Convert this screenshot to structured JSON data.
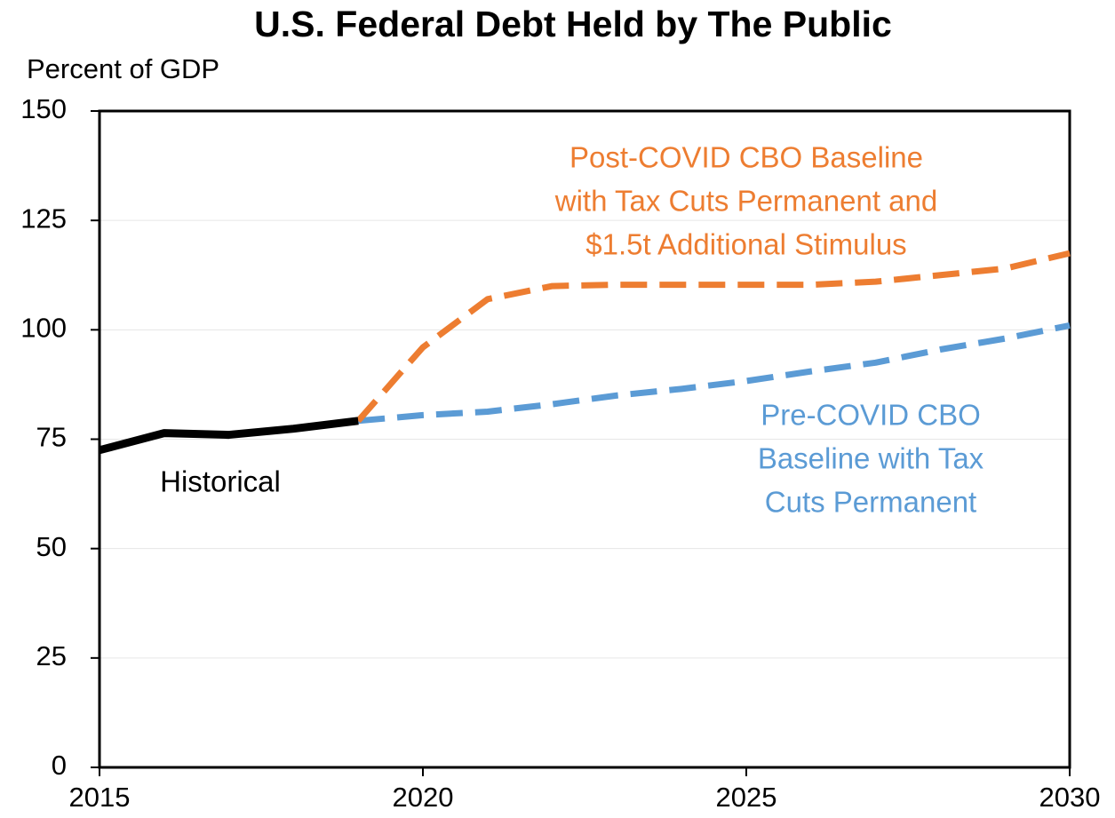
{
  "chart_data": {
    "type": "line",
    "title": "U.S. Federal Debt Held by The Public",
    "y_label": "Percent of GDP",
    "x": [
      2015,
      2016,
      2017,
      2018,
      2019,
      2020,
      2021,
      2022,
      2023,
      2024,
      2025,
      2026,
      2027,
      2028,
      2029,
      2030
    ],
    "xlim": [
      2015,
      2030
    ],
    "xticks": [
      2015,
      2020,
      2025,
      2030
    ],
    "ylim": [
      0,
      150
    ],
    "yticks": [
      0,
      25,
      50,
      75,
      100,
      125,
      150
    ],
    "grid": true,
    "series": [
      {
        "color": "#000000",
        "dashed": false,
        "values": [
          72.5,
          76.4,
          76.0,
          77.4,
          79.2,
          null,
          null,
          null,
          null,
          null,
          null,
          null,
          null,
          null,
          null,
          null
        ]
      },
      {
        "color": "#5b9bd5",
        "dashed": true,
        "values": [
          null,
          null,
          null,
          null,
          79.2,
          80.5,
          81.3,
          83.0,
          85.0,
          86.5,
          88.3,
          90.5,
          92.5,
          95.5,
          98.0,
          101.0
        ]
      },
      {
        "color": "#ed7d31",
        "dashed": true,
        "values": [
          null,
          null,
          null,
          null,
          79.2,
          96.0,
          107.0,
          110.0,
          110.3,
          110.3,
          110.3,
          110.3,
          111.0,
          112.5,
          114.0,
          117.5
        ]
      }
    ],
    "annotations": [
      {
        "lines": [
          "Historical"
        ],
        "color": "#000000"
      },
      {
        "lines": [
          "Pre-COVID CBO",
          "Baseline with Tax",
          "Cuts Permanent"
        ],
        "color": "#5b9bd5"
      },
      {
        "lines": [
          "Post-COVID CBO Baseline",
          "with Tax Cuts Permanent and",
          "$1.5t Additional Stimulus"
        ],
        "color": "#ed7d31"
      }
    ]
  }
}
